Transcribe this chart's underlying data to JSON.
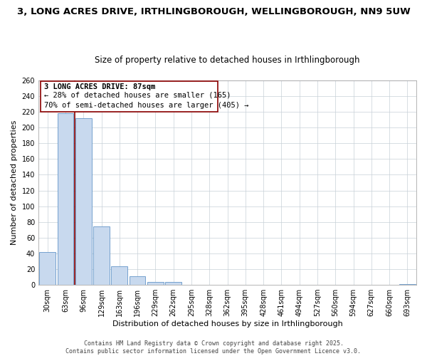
{
  "title": "3, LONG ACRES DRIVE, IRTHLINGBOROUGH, WELLINGBOROUGH, NN9 5UW",
  "subtitle": "Size of property relative to detached houses in Irthlingborough",
  "xlabel": "Distribution of detached houses by size in Irthlingborough",
  "ylabel": "Number of detached properties",
  "bar_labels": [
    "30sqm",
    "63sqm",
    "96sqm",
    "129sqm",
    "163sqm",
    "196sqm",
    "229sqm",
    "262sqm",
    "295sqm",
    "328sqm",
    "362sqm",
    "395sqm",
    "428sqm",
    "461sqm",
    "494sqm",
    "527sqm",
    "560sqm",
    "594sqm",
    "627sqm",
    "660sqm",
    "693sqm"
  ],
  "bar_values": [
    42,
    218,
    212,
    74,
    24,
    11,
    4,
    4,
    0,
    0,
    0,
    0,
    0,
    0,
    0,
    0,
    0,
    0,
    0,
    0,
    1
  ],
  "bar_color": "#c8d9ee",
  "bar_edge_color": "#6496c8",
  "vline_color": "#8b0000",
  "ylim": [
    0,
    260
  ],
  "yticks": [
    0,
    20,
    40,
    60,
    80,
    100,
    120,
    140,
    160,
    180,
    200,
    220,
    240,
    260
  ],
  "annotation_title": "3 LONG ACRES DRIVE: 87sqm",
  "annotation_line2": "← 28% of detached houses are smaller (165)",
  "annotation_line3": "70% of semi-detached houses are larger (405) →",
  "annotation_box_color": "#ffffff",
  "annotation_box_edge": "#8b0000",
  "footer_line1": "Contains HM Land Registry data © Crown copyright and database right 2025.",
  "footer_line2": "Contains public sector information licensed under the Open Government Licence v3.0.",
  "bg_color": "#ffffff",
  "grid_color": "#c8d0d8",
  "title_fontsize": 9.5,
  "subtitle_fontsize": 8.5,
  "axis_label_fontsize": 8,
  "tick_fontsize": 7,
  "ann_fontsize": 7.5,
  "footer_fontsize": 6,
  "vline_pos": 1.5
}
